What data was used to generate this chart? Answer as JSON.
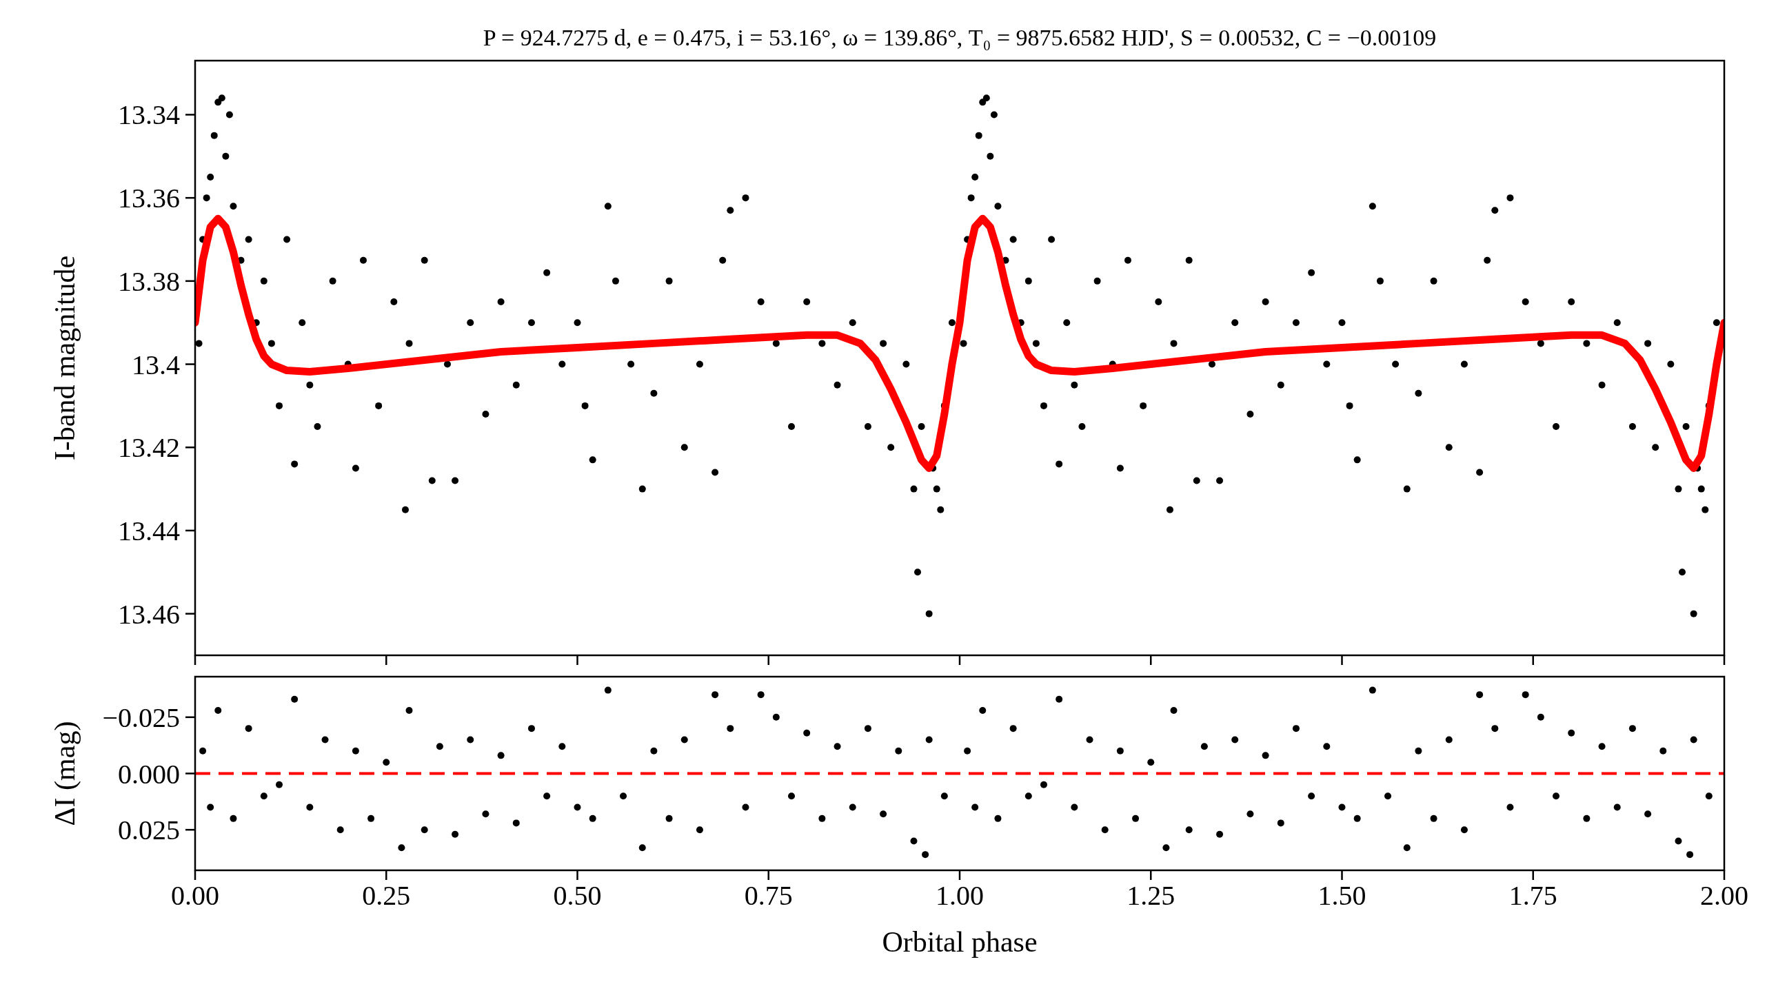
{
  "chart_data": [
    {
      "type": "scatter",
      "title": "P = 924.7275 d, e = 0.475, i = 53.16°, ω = 139.86°, T₀ = 9875.6582 HJD', S = 0.00532, C = −0.00109",
      "ylabel": "I-band magnitude",
      "xlim": [
        0,
        2
      ],
      "ylim": [
        13.47,
        13.327
      ],
      "xticks": [
        0,
        0.25,
        0.5,
        0.75,
        1,
        1.25,
        1.5,
        1.75,
        2
      ],
      "yticks": [
        13.34,
        13.36,
        13.38,
        13.4,
        13.42,
        13.44,
        13.46
      ],
      "tick_labels": "y",
      "series": [
        {
          "marker": "circle",
          "color": "#000000",
          "x": [
            0.005,
            0.01,
            0.015,
            0.02,
            0.025,
            0.03,
            0.035,
            0.04,
            0.045,
            0.05,
            0.06,
            0.07,
            0.08,
            0.09,
            0.1,
            0.11,
            0.12,
            0.13,
            0.14,
            0.15,
            0.16,
            0.18,
            0.2,
            0.21,
            0.22,
            0.24,
            0.26,
            0.275,
            0.28,
            0.3,
            0.31,
            0.33,
            0.34,
            0.36,
            0.38,
            0.4,
            0.42,
            0.44,
            0.46,
            0.48,
            0.5,
            0.51,
            0.52,
            0.54,
            0.55,
            0.57,
            0.585,
            0.6,
            0.62,
            0.64,
            0.66,
            0.68,
            0.69,
            0.7,
            0.72,
            0.74,
            0.76,
            0.78,
            0.8,
            0.82,
            0.84,
            0.86,
            0.88,
            0.9,
            0.91,
            0.93,
            0.94,
            0.945,
            0.95,
            0.96,
            0.965,
            0.97,
            0.975,
            0.98,
            0.99,
            1.005,
            1.01,
            1.015,
            1.02,
            1.025,
            1.03,
            1.035,
            1.04,
            1.045,
            1.05,
            1.06,
            1.07,
            1.08,
            1.09,
            1.1,
            1.11,
            1.12,
            1.13,
            1.14,
            1.15,
            1.16,
            1.18,
            1.2,
            1.21,
            1.22,
            1.24,
            1.26,
            1.275,
            1.28,
            1.3,
            1.31,
            1.33,
            1.34,
            1.36,
            1.38,
            1.4,
            1.42,
            1.44,
            1.46,
            1.48,
            1.5,
            1.51,
            1.52,
            1.54,
            1.55,
            1.57,
            1.585,
            1.6,
            1.62,
            1.64,
            1.66,
            1.68,
            1.69,
            1.7,
            1.72,
            1.74,
            1.76,
            1.78,
            1.8,
            1.82,
            1.84,
            1.86,
            1.88,
            1.9,
            1.91,
            1.93,
            1.94,
            1.945,
            1.95,
            1.96,
            1.965,
            1.97,
            1.975,
            1.98,
            1.99
          ],
          "values": [
            13.395,
            13.37,
            13.36,
            13.355,
            13.345,
            13.337,
            13.336,
            13.35,
            13.34,
            13.362,
            13.375,
            13.37,
            13.39,
            13.38,
            13.395,
            13.41,
            13.37,
            13.424,
            13.39,
            13.405,
            13.415,
            13.38,
            13.4,
            13.425,
            13.375,
            13.41,
            13.385,
            13.435,
            13.395,
            13.375,
            13.428,
            13.4,
            13.428,
            13.39,
            13.412,
            13.385,
            13.405,
            13.39,
            13.378,
            13.4,
            13.39,
            13.41,
            13.423,
            13.362,
            13.38,
            13.4,
            13.43,
            13.407,
            13.38,
            13.42,
            13.4,
            13.426,
            13.375,
            13.363,
            13.36,
            13.385,
            13.395,
            13.415,
            13.385,
            13.395,
            13.405,
            13.39,
            13.415,
            13.395,
            13.42,
            13.4,
            13.43,
            13.45,
            13.415,
            13.46,
            13.425,
            13.43,
            13.435,
            13.41,
            13.39,
            13.395,
            13.37,
            13.36,
            13.355,
            13.345,
            13.337,
            13.336,
            13.35,
            13.34,
            13.362,
            13.375,
            13.37,
            13.39,
            13.38,
            13.395,
            13.41,
            13.37,
            13.424,
            13.39,
            13.405,
            13.415,
            13.38,
            13.4,
            13.425,
            13.375,
            13.41,
            13.385,
            13.435,
            13.395,
            13.375,
            13.428,
            13.4,
            13.428,
            13.39,
            13.412,
            13.385,
            13.405,
            13.39,
            13.378,
            13.4,
            13.39,
            13.41,
            13.423,
            13.362,
            13.38,
            13.4,
            13.43,
            13.407,
            13.38,
            13.42,
            13.4,
            13.426,
            13.375,
            13.363,
            13.36,
            13.385,
            13.395,
            13.415,
            13.385,
            13.395,
            13.405,
            13.39,
            13.415,
            13.395,
            13.42,
            13.4,
            13.43,
            13.45,
            13.415,
            13.46,
            13.425,
            13.43,
            13.435,
            13.41,
            13.39
          ]
        },
        {
          "type": "line",
          "color": "#ff0000",
          "x": [
            0,
            0.01,
            0.02,
            0.03,
            0.04,
            0.05,
            0.06,
            0.07,
            0.08,
            0.09,
            0.1,
            0.12,
            0.15,
            0.2,
            0.3,
            0.4,
            0.5,
            0.6,
            0.7,
            0.8,
            0.84,
            0.87,
            0.89,
            0.91,
            0.93,
            0.95,
            0.96,
            0.97,
            0.98,
            0.99,
            1,
            1.01,
            1.02,
            1.03,
            1.04,
            1.05,
            1.06,
            1.07,
            1.08,
            1.09,
            1.1,
            1.12,
            1.15,
            1.2,
            1.3,
            1.4,
            1.5,
            1.6,
            1.7,
            1.8,
            1.84,
            1.87,
            1.89,
            1.91,
            1.93,
            1.95,
            1.96,
            1.97,
            1.98,
            1.99,
            2
          ],
          "values": [
            13.39,
            13.375,
            13.367,
            13.365,
            13.367,
            13.373,
            13.381,
            13.388,
            13.394,
            13.398,
            13.4,
            13.4015,
            13.4018,
            13.401,
            13.399,
            13.397,
            13.396,
            13.395,
            13.394,
            13.393,
            13.393,
            13.395,
            13.399,
            13.406,
            13.414,
            13.423,
            13.425,
            13.422,
            13.412,
            13.4,
            13.39,
            13.375,
            13.367,
            13.365,
            13.367,
            13.373,
            13.381,
            13.388,
            13.394,
            13.398,
            13.4,
            13.4015,
            13.4018,
            13.401,
            13.399,
            13.397,
            13.396,
            13.395,
            13.394,
            13.393,
            13.393,
            13.395,
            13.399,
            13.406,
            13.414,
            13.423,
            13.425,
            13.422,
            13.412,
            13.4,
            13.39
          ]
        }
      ]
    },
    {
      "type": "scatter",
      "xlabel": "Orbital phase",
      "ylabel": "ΔI (mag)",
      "xlim": [
        0,
        2
      ],
      "ylim": [
        0.043,
        -0.043
      ],
      "xticks": [
        {
          "value": 0,
          "label": "0.00"
        },
        {
          "value": 0.25,
          "label": "0.25"
        },
        {
          "value": 0.5,
          "label": "0.50"
        },
        {
          "value": 0.75,
          "label": "0.75"
        },
        {
          "value": 1,
          "label": "1.00"
        },
        {
          "value": 1.25,
          "label": "1.25"
        },
        {
          "value": 1.5,
          "label": "1.50"
        },
        {
          "value": 1.75,
          "label": "1.75"
        },
        {
          "value": 2,
          "label": "2.00"
        }
      ],
      "yticks": [
        {
          "value": -0.025,
          "label": "−0.025"
        },
        {
          "value": 0,
          "label": "0.000"
        },
        {
          "value": 0.025,
          "label": "0.025"
        }
      ],
      "ref_lines": [
        {
          "axis": "y",
          "value": 0,
          "color": "#ff0000",
          "line_style": "dashed"
        }
      ],
      "series": [
        {
          "marker": "circle",
          "color": "#000000",
          "x": [
            0.01,
            0.02,
            0.03,
            0.05,
            0.07,
            0.09,
            0.11,
            0.13,
            0.15,
            0.17,
            0.19,
            0.21,
            0.23,
            0.25,
            0.27,
            0.28,
            0.3,
            0.32,
            0.34,
            0.36,
            0.38,
            0.4,
            0.42,
            0.44,
            0.46,
            0.48,
            0.5,
            0.52,
            0.54,
            0.56,
            0.585,
            0.6,
            0.62,
            0.64,
            0.66,
            0.68,
            0.7,
            0.72,
            0.74,
            0.76,
            0.78,
            0.8,
            0.82,
            0.84,
            0.86,
            0.88,
            0.9,
            0.92,
            0.94,
            0.955,
            0.96,
            0.98,
            1.01,
            1.02,
            1.03,
            1.05,
            1.07,
            1.09,
            1.11,
            1.13,
            1.15,
            1.17,
            1.19,
            1.21,
            1.23,
            1.25,
            1.27,
            1.28,
            1.3,
            1.32,
            1.34,
            1.36,
            1.38,
            1.4,
            1.42,
            1.44,
            1.46,
            1.48,
            1.5,
            1.52,
            1.54,
            1.56,
            1.585,
            1.6,
            1.62,
            1.64,
            1.66,
            1.68,
            1.7,
            1.72,
            1.74,
            1.76,
            1.78,
            1.8,
            1.82,
            1.84,
            1.86,
            1.88,
            1.9,
            1.92,
            1.94,
            1.955,
            1.96,
            1.98
          ],
          "values": [
            -0.01,
            0.015,
            -0.028,
            0.02,
            -0.02,
            0.01,
            0.005,
            -0.033,
            0.015,
            -0.015,
            0.025,
            -0.01,
            0.02,
            -0.005,
            0.033,
            -0.028,
            0.025,
            -0.012,
            0.027,
            -0.015,
            0.018,
            -0.008,
            0.022,
            -0.02,
            0.01,
            -0.012,
            0.015,
            0.02,
            -0.037,
            0.01,
            0.033,
            -0.01,
            0.02,
            -0.015,
            0.025,
            -0.035,
            -0.02,
            0.015,
            -0.035,
            -0.025,
            0.01,
            -0.018,
            0.02,
            -0.012,
            0.015,
            -0.02,
            0.018,
            -0.01,
            0.03,
            0.036,
            -0.015,
            0.01,
            -0.01,
            0.015,
            -0.028,
            0.02,
            -0.02,
            0.01,
            0.005,
            -0.033,
            0.015,
            -0.015,
            0.025,
            -0.01,
            0.02,
            -0.005,
            0.033,
            -0.028,
            0.025,
            -0.012,
            0.027,
            -0.015,
            0.018,
            -0.008,
            0.022,
            -0.02,
            0.01,
            -0.012,
            0.015,
            0.02,
            -0.037,
            0.01,
            0.033,
            -0.01,
            0.02,
            -0.015,
            0.025,
            -0.035,
            -0.02,
            0.015,
            -0.035,
            -0.025,
            0.01,
            -0.018,
            0.02,
            -0.012,
            0.015,
            -0.02,
            0.018,
            -0.01,
            0.03,
            0.036,
            -0.015,
            0.01
          ]
        }
      ]
    }
  ]
}
